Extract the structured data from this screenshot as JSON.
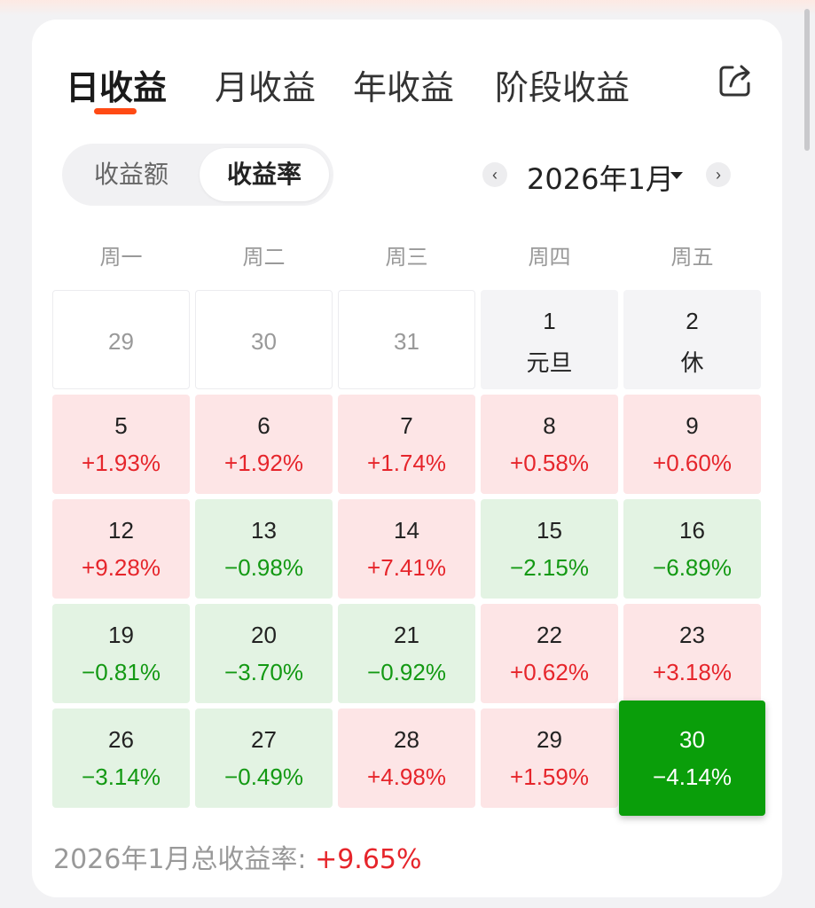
{
  "tabs": [
    "日收益",
    "月收益",
    "年收益",
    "阶段收益"
  ],
  "segment": {
    "options": [
      "收益额",
      "收益率"
    ],
    "selected": "收益率"
  },
  "month_nav": {
    "prev": "‹",
    "label": "2026年1月",
    "next": "›"
  },
  "weekdays": [
    "周一",
    "周二",
    "周三",
    "周四",
    "周五"
  ],
  "calendar": [
    {
      "day": "29",
      "value": "",
      "kind": "prev"
    },
    {
      "day": "30",
      "value": "",
      "kind": "prev"
    },
    {
      "day": "31",
      "value": "",
      "kind": "prev"
    },
    {
      "day": "1",
      "value": "元旦",
      "kind": "holiday"
    },
    {
      "day": "2",
      "value": "休",
      "kind": "holiday"
    },
    {
      "day": "5",
      "value": "+1.93%",
      "kind": "up"
    },
    {
      "day": "6",
      "value": "+1.92%",
      "kind": "up"
    },
    {
      "day": "7",
      "value": "+1.74%",
      "kind": "up"
    },
    {
      "day": "8",
      "value": "+0.58%",
      "kind": "up"
    },
    {
      "day": "9",
      "value": "+0.60%",
      "kind": "up"
    },
    {
      "day": "12",
      "value": "+9.28%",
      "kind": "up"
    },
    {
      "day": "13",
      "value": "−0.98%",
      "kind": "down"
    },
    {
      "day": "14",
      "value": "+7.41%",
      "kind": "up"
    },
    {
      "day": "15",
      "value": "−2.15%",
      "kind": "down"
    },
    {
      "day": "16",
      "value": "−6.89%",
      "kind": "down"
    },
    {
      "day": "19",
      "value": "−0.81%",
      "kind": "down"
    },
    {
      "day": "20",
      "value": "−3.70%",
      "kind": "down"
    },
    {
      "day": "21",
      "value": "−0.92%",
      "kind": "down"
    },
    {
      "day": "22",
      "value": "+0.62%",
      "kind": "up"
    },
    {
      "day": "23",
      "value": "+3.18%",
      "kind": "up"
    },
    {
      "day": "26",
      "value": "−3.14%",
      "kind": "down"
    },
    {
      "day": "27",
      "value": "−0.49%",
      "kind": "down"
    },
    {
      "day": "28",
      "value": "+4.98%",
      "kind": "up"
    },
    {
      "day": "29",
      "value": "+1.59%",
      "kind": "up"
    },
    {
      "day": "30",
      "value": "−4.14%",
      "kind": "selected"
    }
  ],
  "summary": {
    "label": "2026年1月总收益率: ",
    "value": "+9.65%"
  },
  "colors": {
    "accent": "#ff4a14",
    "up": "#e6252b",
    "down": "#139913",
    "selected": "#0a9e0a"
  }
}
